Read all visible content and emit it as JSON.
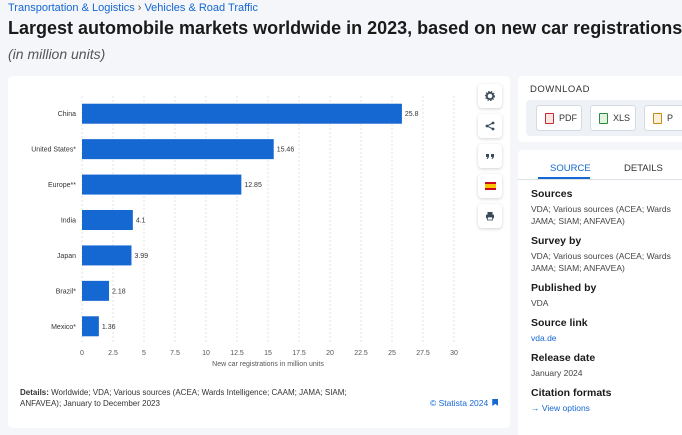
{
  "breadcrumb": {
    "items": [
      "Transportation & Logistics",
      "Vehicles & Road Traffic"
    ],
    "separator": "›"
  },
  "title": "Largest automobile markets worldwide in 2023, based on new car registrations",
  "subtitle": "(in million units)",
  "chart_data": {
    "type": "bar",
    "orientation": "horizontal",
    "categories": [
      "China",
      "United States*",
      "Europe**",
      "India",
      "Japan",
      "Brazil*",
      "Mexico*"
    ],
    "values": [
      25.8,
      15.46,
      12.85,
      4.1,
      3.99,
      2.18,
      1.36
    ],
    "value_labels": [
      "25.8",
      "15.46",
      "12.85",
      "4.1",
      "3.99",
      "2.18",
      "1.36"
    ],
    "xlabel": "New car registrations in million units",
    "xlim": [
      0,
      30
    ],
    "xticks": [
      0,
      2.5,
      5,
      7.5,
      10,
      12.5,
      15,
      17.5,
      20,
      22.5,
      25,
      27.5,
      30
    ],
    "xtick_labels": [
      "0",
      "2.5",
      "5",
      "7.5",
      "10",
      "12.5",
      "15",
      "17.5",
      "20",
      "22.5",
      "25",
      "27.5",
      "30"
    ],
    "grid": true,
    "bar_color": "#1567d2"
  },
  "details": {
    "label": "Details:",
    "text": "Worldwide; VDA; Various sources (ACEA; Wards Intelligence; CAAM; JAMA; SIAM; ANFAVEA); January to December 2023"
  },
  "copyright": "© Statista 2024",
  "toolbar": {
    "icons": [
      "gear-icon",
      "share-icon",
      "quote-icon",
      "flag-es-icon",
      "print-icon"
    ]
  },
  "download": {
    "title": "DOWNLOAD",
    "buttons": [
      {
        "label": "PDF"
      },
      {
        "label": "XLS"
      },
      {
        "label": "P"
      }
    ]
  },
  "tabs": {
    "source": "SOURCE",
    "details": "DETAILS"
  },
  "source_info": {
    "sources_title": "Sources",
    "sources_line1": "VDA; Various sources (ACEA; Wards",
    "sources_line2": "JAMA; SIAM; ANFAVEA)",
    "survey_title": "Survey by",
    "survey_line1": "VDA; Various sources (ACEA; Wards",
    "survey_line2": "JAMA; SIAM; ANFAVEA)",
    "published_title": "Published by",
    "published_value": "VDA",
    "link_title": "Source link",
    "link_value": "vda.de",
    "release_title": "Release date",
    "release_value": "January 2024",
    "citation_title": "Citation formats",
    "citation_link": "View options",
    "citation_arrow": "→"
  }
}
